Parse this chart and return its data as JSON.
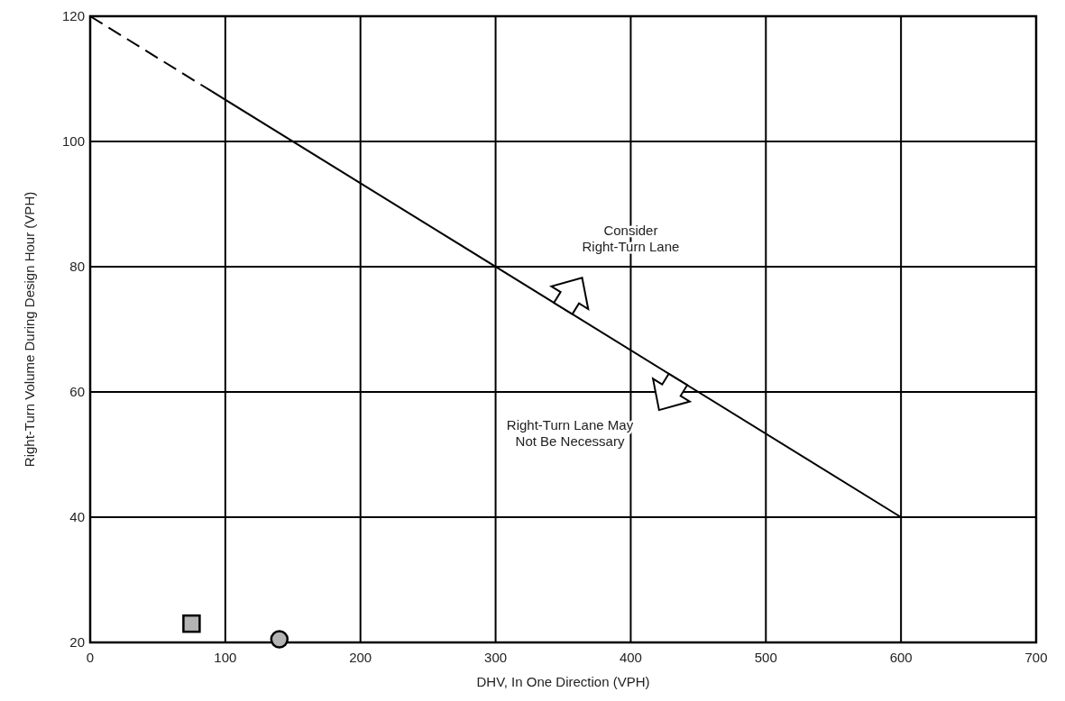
{
  "chart_data": {
    "type": "line",
    "xlabel": "DHV, In One Direction (VPH)",
    "ylabel": "Right-Turn Volume During Design Hour (VPH)",
    "xlim": [
      0,
      700
    ],
    "ylim": [
      20,
      120
    ],
    "xticks": [
      0,
      100,
      200,
      300,
      400,
      500,
      600,
      700
    ],
    "yticks": [
      20,
      40,
      60,
      80,
      100,
      120
    ],
    "grid": true,
    "series": [
      {
        "color": "#000000",
        "line_style": "dashed",
        "x": [
          0,
          90
        ],
        "values": [
          120,
          108
        ]
      },
      {
        "color": "#000000",
        "line_style": "solid",
        "x": [
          90,
          600
        ],
        "values": [
          108,
          40
        ]
      },
      {
        "type": "scatter",
        "color": "#b4b4b4",
        "marker": "square",
        "x": [
          75
        ],
        "values": [
          23
        ]
      },
      {
        "type": "scatter",
        "color": "#b4b4b4",
        "marker": "circle",
        "x": [
          140
        ],
        "values": [
          20.5
        ]
      }
    ],
    "annotations": [
      "Consider\nRight-Turn Lane",
      "Right-Turn Lane May\nNot Be Necessary"
    ]
  }
}
